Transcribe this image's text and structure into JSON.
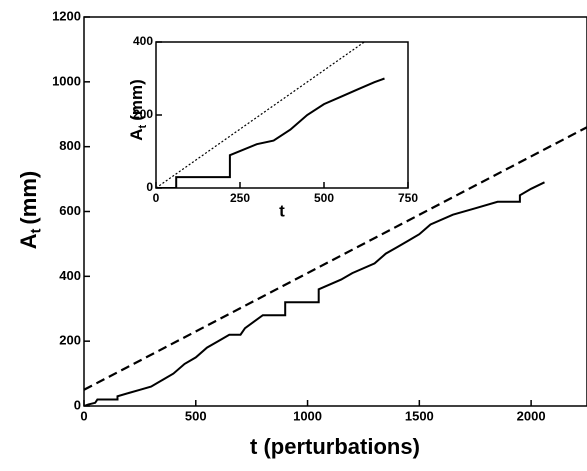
{
  "chart_data": [
    {
      "type": "line",
      "xlabel": "t (perturbations)",
      "ylabel": {
        "main": "A",
        "sub": "t",
        "unit": "(mm)"
      },
      "xlim": [
        0,
        2250
      ],
      "ylim": [
        0,
        1200
      ],
      "xticks": [
        0,
        500,
        1000,
        1500,
        2000
      ],
      "yticks": [
        0,
        200,
        400,
        600,
        800,
        1000,
        1200
      ],
      "series": [
        {
          "color": "#000000",
          "dash": "9,5",
          "x": [
            0,
            2250
          ],
          "values": [
            50,
            860
          ]
        },
        {
          "color": "#000000",
          "dash": "none",
          "x": [
            0,
            20,
            50,
            60,
            150,
            150,
            200,
            250,
            300,
            350,
            400,
            450,
            500,
            550,
            600,
            650,
            700,
            720,
            760,
            800,
            900,
            900,
            1050,
            1050,
            1150,
            1200,
            1300,
            1350,
            1400,
            1450,
            1500,
            1550,
            1650,
            1750,
            1850,
            1950,
            1950,
            2000,
            2060
          ],
          "values": [
            0,
            5,
            10,
            20,
            20,
            30,
            40,
            50,
            60,
            80,
            100,
            130,
            150,
            180,
            200,
            220,
            220,
            240,
            260,
            280,
            280,
            320,
            320,
            360,
            390,
            410,
            440,
            470,
            490,
            510,
            530,
            560,
            590,
            610,
            630,
            630,
            650,
            670,
            690
          ]
        }
      ]
    },
    {
      "type": "line",
      "xlabel": "t",
      "ylabel": {
        "main": "A",
        "sub": "t",
        "unit": "(mm)"
      },
      "xlim": [
        0,
        750
      ],
      "ylim": [
        0,
        400
      ],
      "xticks": [
        0,
        250,
        500,
        750
      ],
      "yticks": [
        0,
        200,
        400
      ],
      "series": [
        {
          "color": "#000000",
          "dash": "2,2",
          "x": [
            0,
            620
          ],
          "values": [
            0,
            400
          ]
        },
        {
          "color": "#000000",
          "dash": "none",
          "x": [
            0,
            60,
            60,
            220,
            220,
            300,
            350,
            400,
            450,
            500,
            550,
            600,
            650,
            680
          ],
          "values": [
            0,
            0,
            30,
            30,
            90,
            120,
            130,
            160,
            200,
            230,
            250,
            270,
            290,
            300
          ]
        }
      ]
    }
  ]
}
